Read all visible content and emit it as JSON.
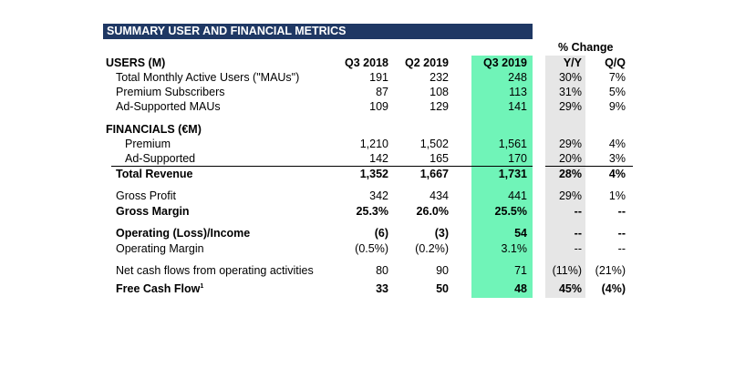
{
  "title": "SUMMARY USER AND FINANCIAL METRICS",
  "change_header": "% Change",
  "columns": [
    "Q3 2018",
    "Q2 2019",
    "Q3 2019",
    "Y/Y",
    "Q/Q"
  ],
  "users_section": "USERS (M)",
  "financials_section": "FINANCIALS (€M)",
  "rows": [
    {
      "label": "Total Monthly Active Users (\"MAUs\")",
      "v": [
        "191",
        "232",
        "248",
        "30%",
        "7%"
      ]
    },
    {
      "label": "Premium Subscribers",
      "v": [
        "87",
        "108",
        "113",
        "31%",
        "5%"
      ]
    },
    {
      "label": "Ad-Supported MAUs",
      "v": [
        "109",
        "129",
        "141",
        "29%",
        "9%"
      ]
    },
    {
      "label": "Premium",
      "v": [
        "1,210",
        "1,502",
        "1,561",
        "29%",
        "4%"
      ]
    },
    {
      "label": "Ad-Supported",
      "v": [
        "142",
        "165",
        "170",
        "20%",
        "3%"
      ]
    },
    {
      "label": "Total Revenue",
      "v": [
        "1,352",
        "1,667",
        "1,731",
        "28%",
        "4%"
      ]
    },
    {
      "label": "Gross Profit",
      "v": [
        "342",
        "434",
        "441",
        "29%",
        "1%"
      ]
    },
    {
      "label": "Gross Margin",
      "v": [
        "25.3%",
        "26.0%",
        "25.5%",
        "--",
        "--"
      ]
    },
    {
      "label": "Operating (Loss)/Income",
      "v": [
        "(6)",
        "(3)",
        "54",
        "--",
        "--"
      ]
    },
    {
      "label": "Operating Margin",
      "v": [
        "(0.5%)",
        "(0.2%)",
        "3.1%",
        "--",
        "--"
      ]
    },
    {
      "label": "Net cash flows from operating activities",
      "v": [
        "80",
        "90",
        "71",
        "(11%)",
        "(21%)"
      ]
    },
    {
      "label": "Free Cash Flow",
      "sup": "1",
      "v": [
        "33",
        "50",
        "48",
        "45%",
        "(4%)"
      ]
    }
  ]
}
